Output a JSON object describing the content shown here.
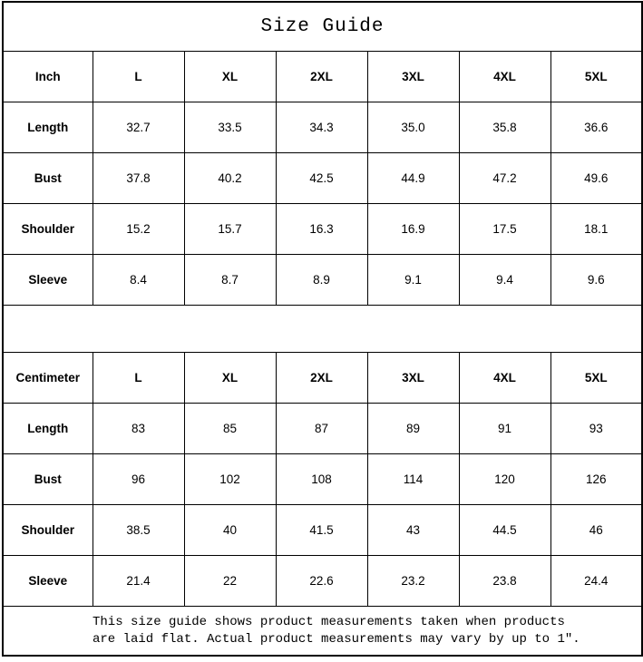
{
  "title": "Size Guide",
  "size_labels": [
    "L",
    "XL",
    "2XL",
    "3XL",
    "4XL",
    "5XL"
  ],
  "inch_table": {
    "unit_label": "Inch",
    "rows": [
      {
        "label": "Length",
        "values": [
          "32.7",
          "33.5",
          "34.3",
          "35.0",
          "35.8",
          "36.6"
        ]
      },
      {
        "label": "Bust",
        "values": [
          "37.8",
          "40.2",
          "42.5",
          "44.9",
          "47.2",
          "49.6"
        ]
      },
      {
        "label": "Shoulder",
        "values": [
          "15.2",
          "15.7",
          "16.3",
          "16.9",
          "17.5",
          "18.1"
        ]
      },
      {
        "label": "Sleeve",
        "values": [
          "8.4",
          "8.7",
          "8.9",
          "9.1",
          "9.4",
          "9.6"
        ]
      }
    ]
  },
  "centimeter_table": {
    "unit_label": "Centimeter",
    "rows": [
      {
        "label": "Length",
        "values": [
          "83",
          "85",
          "87",
          "89",
          "91",
          "93"
        ]
      },
      {
        "label": "Bust",
        "values": [
          "96",
          "102",
          "108",
          "114",
          "120",
          "126"
        ]
      },
      {
        "label": "Shoulder",
        "values": [
          "38.5",
          "40",
          "41.5",
          "43",
          "44.5",
          "46"
        ]
      },
      {
        "label": "Sleeve",
        "values": [
          "21.4",
          "22",
          "22.6",
          "23.2",
          "23.8",
          "24.4"
        ]
      }
    ]
  },
  "footer": {
    "line1": "This size guide shows product measurements taken when products",
    "line2": "are laid flat. Actual product measurements may vary by up to 1″."
  },
  "colors": {
    "border": "#000000",
    "background": "#ffffff",
    "text": "#000000"
  },
  "chart_data": [
    {
      "type": "table",
      "title": "Size Guide",
      "unit": "Inch",
      "columns": [
        "Inch",
        "L",
        "XL",
        "2XL",
        "3XL",
        "4XL",
        "5XL"
      ],
      "rows": [
        [
          "Length",
          "32.7",
          "33.5",
          "34.3",
          "35.0",
          "35.8",
          "36.6"
        ],
        [
          "Bust",
          "37.8",
          "40.2",
          "42.5",
          "44.9",
          "47.2",
          "49.6"
        ],
        [
          "Shoulder",
          "15.2",
          "15.7",
          "16.3",
          "16.9",
          "17.5",
          "18.1"
        ],
        [
          "Sleeve",
          "8.4",
          "8.7",
          "8.9",
          "9.1",
          "9.4",
          "9.6"
        ]
      ]
    },
    {
      "type": "table",
      "title": "Size Guide",
      "unit": "Centimeter",
      "columns": [
        "Centimeter",
        "L",
        "XL",
        "2XL",
        "3XL",
        "4XL",
        "5XL"
      ],
      "rows": [
        [
          "Length",
          "83",
          "85",
          "87",
          "89",
          "91",
          "93"
        ],
        [
          "Bust",
          "96",
          "102",
          "108",
          "114",
          "120",
          "126"
        ],
        [
          "Shoulder",
          "38.5",
          "40",
          "41.5",
          "43",
          "44.5",
          "46"
        ],
        [
          "Sleeve",
          "21.4",
          "22",
          "22.6",
          "23.2",
          "23.8",
          "24.4"
        ]
      ],
      "note": "This size guide shows product measurements taken when products are laid flat. Actual product measurements may vary by up to 1″."
    }
  ]
}
